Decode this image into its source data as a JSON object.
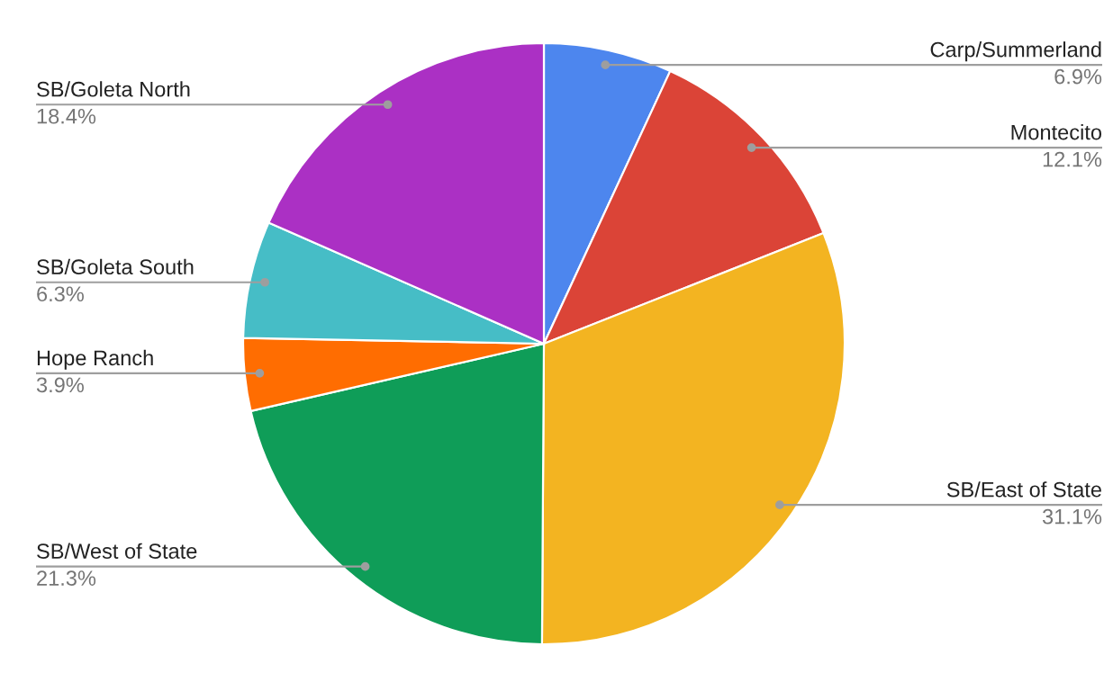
{
  "chart_data": {
    "type": "pie",
    "categories": [
      "Carp/Summerland",
      "Montecito",
      "SB/East of State",
      "SB/West of State",
      "Hope Ranch",
      "SB/Goleta South",
      "SB/Goleta North"
    ],
    "values": [
      6.9,
      12.1,
      31.1,
      21.3,
      3.9,
      6.3,
      18.4
    ],
    "value_labels": [
      "6.9%",
      "12.1%",
      "31.1%",
      "21.3%",
      "3.9%",
      "6.3%",
      "18.4%"
    ],
    "colors": [
      "#4d86ee",
      "#db4437",
      "#f3b421",
      "#0f9d58",
      "#ff6d01",
      "#46bdc6",
      "#ab30c4"
    ]
  }
}
